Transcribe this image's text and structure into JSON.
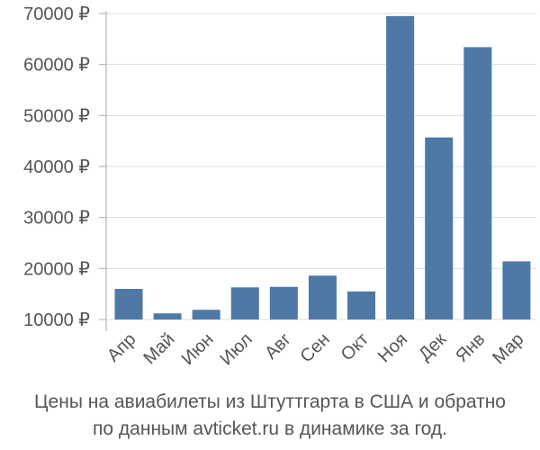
{
  "chart_data": {
    "type": "bar",
    "categories": [
      "Апр",
      "Май",
      "Июн",
      "Июл",
      "Авг",
      "Сен",
      "Окт",
      "Ноя",
      "Дек",
      "Янв",
      "Мар"
    ],
    "values": [
      16000,
      11200,
      11900,
      16300,
      16400,
      18600,
      15500,
      69500,
      45700,
      63400,
      21400
    ],
    "ylim": [
      8000,
      70000
    ],
    "yticks": [
      10000,
      20000,
      30000,
      40000,
      50000,
      60000,
      70000
    ],
    "ytick_labels": [
      "10000 ₽",
      "20000 ₽",
      "30000 ₽",
      "40000 ₽",
      "50000 ₽",
      "60000 ₽",
      "70000 ₽"
    ],
    "grid": true,
    "bar_color": "#4e79a7"
  },
  "caption": {
    "line1": "Цены на авиабилеты из Штуттгарта в США и обратно",
    "line2": "по данным avticket.ru в динамике за год."
  }
}
